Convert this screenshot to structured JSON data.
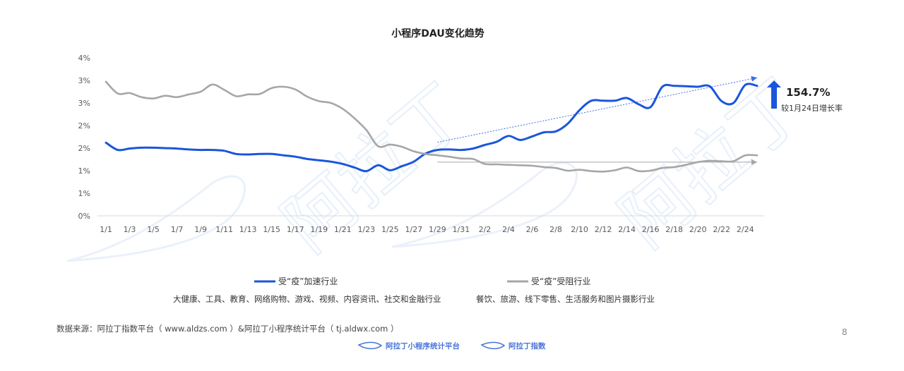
{
  "page": {
    "number": "8"
  },
  "source_note": "数据来源：阿拉丁指数平台（ www.aldzs.com ）&阿拉丁小程序统计平台（ tj.aldwx.com ）",
  "footer": {
    "logo1": "阿拉丁小程序统计平台",
    "logo2": "阿拉丁指数"
  },
  "watermark": "阿拉丁",
  "annotation": {
    "value": "154.7%",
    "label": "较1月24日增长率",
    "arrow_color": "#1a56db"
  },
  "legend": [
    {
      "label": "受“疫”加速行业",
      "color": "#1a56db",
      "description": "大健康、工具、教育、网络购物、游戏、视频、内容资讯、社交和金融行业"
    },
    {
      "label": "受“疫”受阻行业",
      "color": "#a6a6a6",
      "description": "餐饮、旅游、线下零售、生活服务和图片摄影行业"
    }
  ],
  "chart_data": {
    "type": "line",
    "title": "小程序DAU变化趋势",
    "y_tick_labels": [
      "0%",
      "1%",
      "1%",
      "2%",
      "2%",
      "3%",
      "3%",
      "4%"
    ],
    "ylim": [
      0,
      3.5
    ],
    "x": [
      "1/1",
      "1/2",
      "1/3",
      "1/4",
      "1/5",
      "1/6",
      "1/7",
      "1/8",
      "1/9",
      "1/10",
      "1/11",
      "1/12",
      "1/13",
      "1/14",
      "1/15",
      "1/16",
      "1/17",
      "1/18",
      "1/19",
      "1/20",
      "1/21",
      "1/22",
      "1/23",
      "1/24",
      "1/25",
      "1/26",
      "1/27",
      "1/28",
      "1/29",
      "1/30",
      "1/31",
      "2/1",
      "2/2",
      "2/3",
      "2/4",
      "2/5",
      "2/6",
      "2/7",
      "2/8",
      "2/9",
      "2/10",
      "2/11",
      "2/12",
      "2/13",
      "2/14",
      "2/15",
      "2/16",
      "2/17",
      "2/18",
      "2/19",
      "2/20",
      "2/21",
      "2/22",
      "2/23",
      "2/24",
      "2/25"
    ],
    "x_tick_labels": [
      "1/1",
      "1/3",
      "1/5",
      "1/7",
      "1/9",
      "1/11",
      "1/13",
      "1/15",
      "1/17",
      "1/19",
      "1/21",
      "1/23",
      "1/25",
      "1/27",
      "1/29",
      "1/31",
      "2/2",
      "2/4",
      "2/6",
      "2/8",
      "2/10",
      "2/12",
      "2/14",
      "2/16",
      "2/18",
      "2/20",
      "2/22",
      "2/24"
    ],
    "grid": false,
    "legend_position": "bottom",
    "series": [
      {
        "name": "受“疫”加速行业",
        "color": "#1a56db",
        "values": [
          1.62,
          1.46,
          1.49,
          1.51,
          1.51,
          1.5,
          1.49,
          1.47,
          1.46,
          1.46,
          1.44,
          1.37,
          1.36,
          1.37,
          1.37,
          1.34,
          1.31,
          1.26,
          1.23,
          1.2,
          1.15,
          1.07,
          0.99,
          1.12,
          1.01,
          1.1,
          1.2,
          1.38,
          1.46,
          1.47,
          1.46,
          1.49,
          1.57,
          1.64,
          1.77,
          1.68,
          1.76,
          1.85,
          1.87,
          2.04,
          2.34,
          2.55,
          2.55,
          2.55,
          2.61,
          2.47,
          2.41,
          2.86,
          2.88,
          2.87,
          2.86,
          2.87,
          2.54,
          2.5,
          2.9,
          2.88
        ],
        "trend": {
          "color": "#3a6ee8",
          "from": [
            29,
            1.63
          ],
          "to": [
            56,
            3.06
          ]
        }
      },
      {
        "name": "受“疫”受阻行业",
        "color": "#a6a6a6",
        "values": [
          2.97,
          2.71,
          2.72,
          2.63,
          2.6,
          2.66,
          2.63,
          2.69,
          2.75,
          2.91,
          2.79,
          2.65,
          2.69,
          2.7,
          2.83,
          2.86,
          2.8,
          2.64,
          2.54,
          2.5,
          2.37,
          2.16,
          1.9,
          1.54,
          1.58,
          1.53,
          1.43,
          1.37,
          1.34,
          1.31,
          1.27,
          1.26,
          1.15,
          1.14,
          1.13,
          1.12,
          1.11,
          1.08,
          1.06,
          1.0,
          1.02,
          0.99,
          0.98,
          1.01,
          1.07,
          0.99,
          1.0,
          1.06,
          1.08,
          1.13,
          1.19,
          1.22,
          1.21,
          1.21,
          1.34,
          1.34
        ],
        "trend": {
          "color": "#a6a6a6",
          "from": [
            29,
            1.19
          ],
          "to": [
            56,
            1.19
          ]
        }
      }
    ]
  }
}
